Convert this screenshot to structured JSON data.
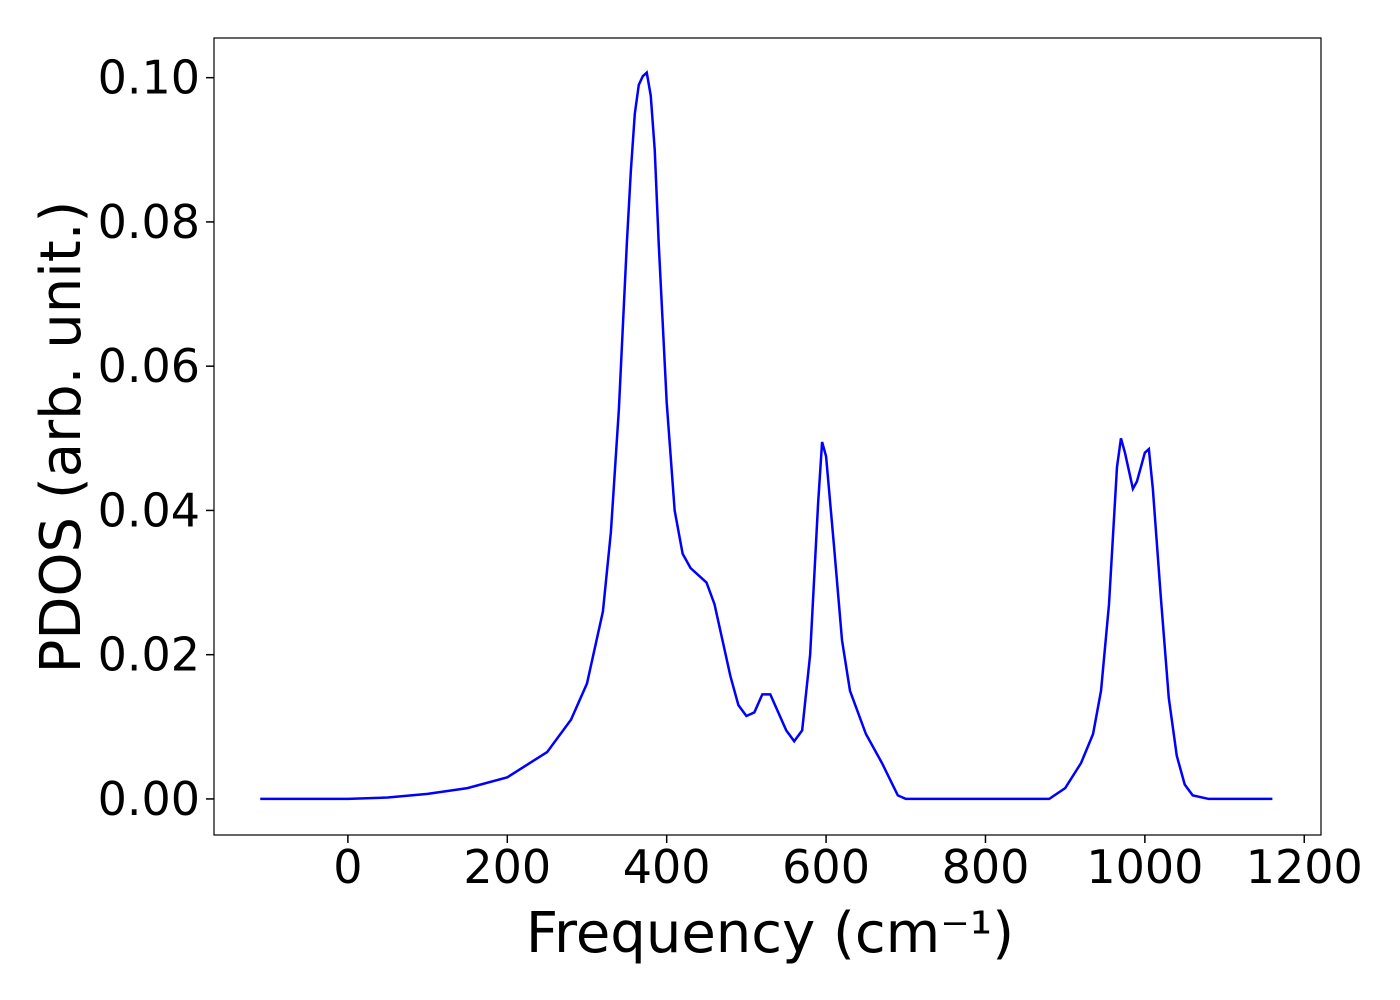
{
  "chart_data": {
    "type": "line",
    "xlabel": "Frequency (cm⁻¹)",
    "ylabel": "PDOS (arb. unit.)",
    "xlim": [
      -168,
      1221
    ],
    "ylim": [
      -0.005,
      0.1055
    ],
    "xticks": [
      0,
      200,
      400,
      600,
      800,
      1000,
      1200
    ],
    "yticks": [
      {
        "value": 0,
        "label": "0.00"
      },
      {
        "value": 0.02,
        "label": "0.02"
      },
      {
        "value": 0.04,
        "label": "0.04"
      },
      {
        "value": 0.06,
        "label": "0.06"
      },
      {
        "value": 0.08,
        "label": "0.08"
      },
      {
        "value": 0.1,
        "label": "0.10"
      }
    ],
    "grid": false,
    "x": [
      -110,
      0,
      50,
      100,
      150,
      200,
      250,
      280,
      300,
      320,
      330,
      340,
      350,
      355,
      360,
      365,
      370,
      375,
      380,
      385,
      390,
      400,
      410,
      420,
      430,
      440,
      450,
      460,
      470,
      480,
      490,
      500,
      510,
      520,
      530,
      540,
      550,
      560,
      570,
      580,
      590,
      595,
      600,
      610,
      620,
      630,
      650,
      670,
      690,
      700,
      880,
      900,
      920,
      935,
      945,
      955,
      965,
      970,
      975,
      985,
      990,
      1000,
      1005,
      1010,
      1020,
      1030,
      1040,
      1050,
      1060,
      1080,
      1160
    ],
    "series": [
      {
        "color": "#0000ff",
        "values": [
          0,
          0,
          0.0002,
          0.0007,
          0.0015,
          0.003,
          0.0065,
          0.011,
          0.016,
          0.026,
          0.037,
          0.054,
          0.077,
          0.087,
          0.095,
          0.099,
          0.1002,
          0.1007,
          0.0975,
          0.09,
          0.077,
          0.055,
          0.04,
          0.034,
          0.032,
          0.031,
          0.03,
          0.027,
          0.022,
          0.017,
          0.013,
          0.0115,
          0.012,
          0.0145,
          0.0145,
          0.012,
          0.0095,
          0.008,
          0.0095,
          0.02,
          0.041,
          0.0495,
          0.0475,
          0.035,
          0.022,
          0.015,
          0.009,
          0.005,
          0.0005,
          0,
          0,
          0.0015,
          0.005,
          0.009,
          0.015,
          0.027,
          0.046,
          0.05,
          0.048,
          0.043,
          0.044,
          0.048,
          0.0485,
          0.043,
          0.028,
          0.014,
          0.006,
          0.002,
          0.0005,
          0,
          0
        ]
      }
    ]
  }
}
